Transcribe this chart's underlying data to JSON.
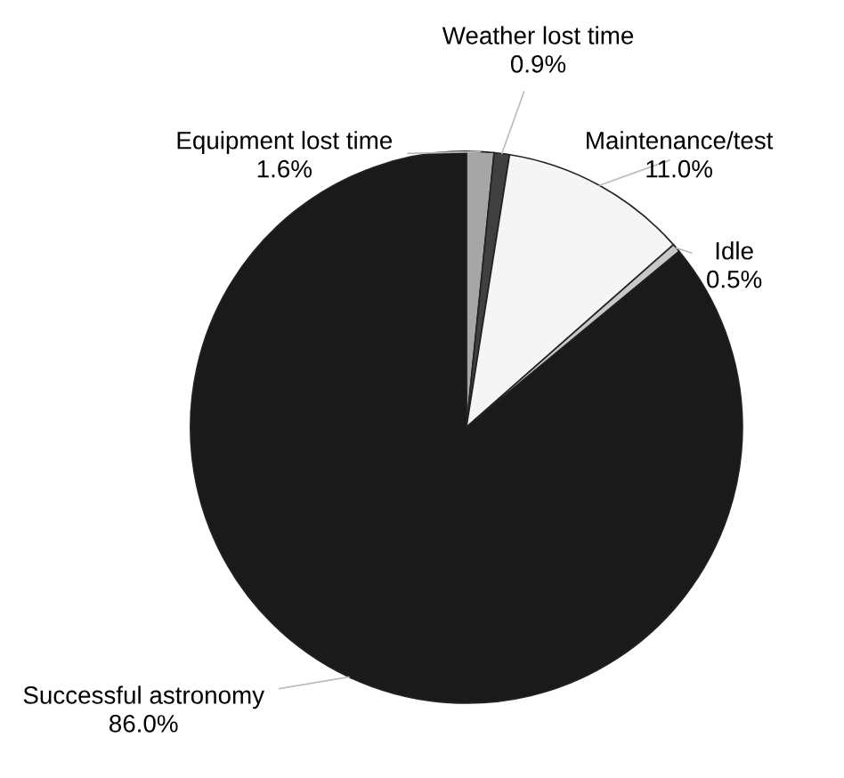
{
  "chart_data": {
    "type": "pie",
    "categories": [
      "Equipment lost time",
      "Weather lost time",
      "Maintenance/test",
      "Idle",
      "Successful astronomy"
    ],
    "values": [
      1.6,
      0.9,
      11.0,
      0.5,
      86.0
    ],
    "value_labels": [
      "1.6%",
      "0.9%",
      "11.0%",
      "0.5%",
      "86.0%"
    ],
    "colors": [
      "#a6a6a6",
      "#404040",
      "#f5f5f5",
      "#c8c8c8",
      "#1a1a1a"
    ],
    "legend": false
  }
}
